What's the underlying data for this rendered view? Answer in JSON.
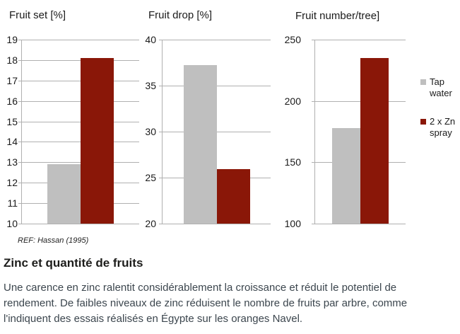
{
  "figure": {
    "ref_label": "REF: Hassan (1995)"
  },
  "legend": {
    "position": "right",
    "entries": [
      {
        "label": "Tap water",
        "color": "#bfbfbf"
      },
      {
        "label": "2 x Zn spray",
        "color": "#8a1708"
      }
    ]
  },
  "chart_data": [
    {
      "type": "bar",
      "title": "Fruit set [%]",
      "categories": [
        "Tap water",
        "2 x Zn spray"
      ],
      "values": [
        12.9,
        18.1
      ],
      "ylim": [
        10,
        19
      ],
      "yticks": [
        19,
        18,
        17,
        16,
        15,
        14,
        13,
        12,
        11,
        10
      ],
      "grid": true,
      "legend_position": "right"
    },
    {
      "type": "bar",
      "title": "Fruit drop [%]",
      "categories": [
        "Tap water",
        "2 x Zn spray"
      ],
      "values": [
        37.2,
        25.9
      ],
      "ylim": [
        20,
        40
      ],
      "yticks": [
        40,
        35,
        30,
        25,
        20
      ],
      "grid": true,
      "legend_position": "right"
    },
    {
      "type": "bar",
      "title": "Fruit number/tree]",
      "categories": [
        "Tap water",
        "2 x Zn spray"
      ],
      "values": [
        178,
        235
      ],
      "ylim": [
        100,
        250
      ],
      "yticks": [
        250,
        200,
        150,
        100
      ],
      "grid": true,
      "legend_position": "right"
    }
  ],
  "text": {
    "heading": "Zinc et quantité de fruits",
    "paragraph": "Une carence en zinc ralentit considérablement la croissance et réduit le potentiel de rendement. De faibles niveaux de zinc réduisent le nombre de fruits par arbre, comme l'indiquent des essais réalisés en Égypte sur les oranges Navel."
  },
  "colors": {
    "tap_water_bar": "#bfbfbf",
    "zn_spray_bar": "#8a1708",
    "grid": "#b0b0b0",
    "body_text": "#3c464e"
  }
}
